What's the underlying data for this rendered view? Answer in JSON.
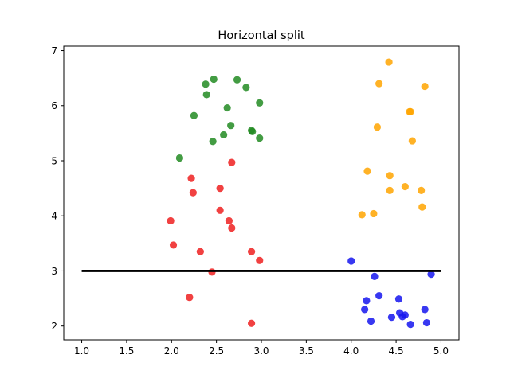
{
  "chart_data": {
    "type": "scatter",
    "title": "Horizontal split",
    "xlabel": "",
    "ylabel": "",
    "xlim": [
      0.8,
      5.2
    ],
    "ylim": [
      1.75,
      7.08
    ],
    "x_ticks": [
      1.0,
      1.5,
      2.0,
      2.5,
      3.0,
      3.5,
      4.0,
      4.5,
      5.0
    ],
    "x_tick_labels": [
      "1.0",
      "1.5",
      "2.0",
      "2.5",
      "3.0",
      "3.5",
      "4.0",
      "4.5",
      "5.0"
    ],
    "y_ticks": [
      2,
      3,
      4,
      5,
      6,
      7
    ],
    "y_tick_labels": [
      "2",
      "3",
      "4",
      "5",
      "6",
      "7"
    ],
    "grid": false,
    "series": [
      {
        "color": "#228b22",
        "points": [
          [
            2.47,
            6.48
          ],
          [
            2.73,
            6.47
          ],
          [
            2.38,
            6.39
          ],
          [
            2.83,
            6.33
          ],
          [
            2.39,
            6.2
          ],
          [
            2.98,
            6.05
          ],
          [
            2.62,
            5.96
          ],
          [
            2.25,
            5.82
          ],
          [
            2.66,
            5.64
          ],
          [
            2.89,
            5.55
          ],
          [
            2.9,
            5.53
          ],
          [
            2.58,
            5.47
          ],
          [
            2.98,
            5.41
          ],
          [
            2.46,
            5.35
          ],
          [
            2.09,
            5.05
          ]
        ]
      },
      {
        "color": "#ef2020",
        "points": [
          [
            2.67,
            4.97
          ],
          [
            2.22,
            4.68
          ],
          [
            2.54,
            4.5
          ],
          [
            2.24,
            4.42
          ],
          [
            2.54,
            4.1
          ],
          [
            1.99,
            3.91
          ],
          [
            2.64,
            3.91
          ],
          [
            2.67,
            3.78
          ],
          [
            2.02,
            3.47
          ],
          [
            2.32,
            3.35
          ],
          [
            2.89,
            3.35
          ],
          [
            2.98,
            3.19
          ],
          [
            2.45,
            2.98
          ],
          [
            2.2,
            2.52
          ],
          [
            2.89,
            2.05
          ]
        ]
      },
      {
        "color": "#ffa500",
        "points": [
          [
            4.42,
            6.79
          ],
          [
            4.31,
            6.4
          ],
          [
            4.82,
            6.35
          ],
          [
            4.65,
            5.89
          ],
          [
            4.66,
            5.89
          ],
          [
            4.29,
            5.61
          ],
          [
            4.68,
            5.36
          ],
          [
            4.18,
            4.81
          ],
          [
            4.43,
            4.73
          ],
          [
            4.6,
            4.53
          ],
          [
            4.43,
            4.46
          ],
          [
            4.78,
            4.46
          ],
          [
            4.79,
            4.16
          ],
          [
            4.25,
            4.04
          ],
          [
            4.12,
            4.02
          ]
        ]
      },
      {
        "color": "#1515ef",
        "points": [
          [
            4.0,
            3.18
          ],
          [
            4.89,
            2.94
          ],
          [
            4.26,
            2.9
          ],
          [
            4.31,
            2.55
          ],
          [
            4.53,
            2.49
          ],
          [
            4.17,
            2.46
          ],
          [
            4.15,
            2.3
          ],
          [
            4.82,
            2.3
          ],
          [
            4.54,
            2.24
          ],
          [
            4.6,
            2.2
          ],
          [
            4.57,
            2.17
          ],
          [
            4.45,
            2.16
          ],
          [
            4.22,
            2.09
          ],
          [
            4.84,
            2.06
          ],
          [
            4.66,
            2.03
          ]
        ]
      }
    ],
    "split_line": {
      "x": [
        1.0,
        5.0
      ],
      "y": [
        3.0,
        3.0
      ],
      "color": "#000000"
    }
  }
}
